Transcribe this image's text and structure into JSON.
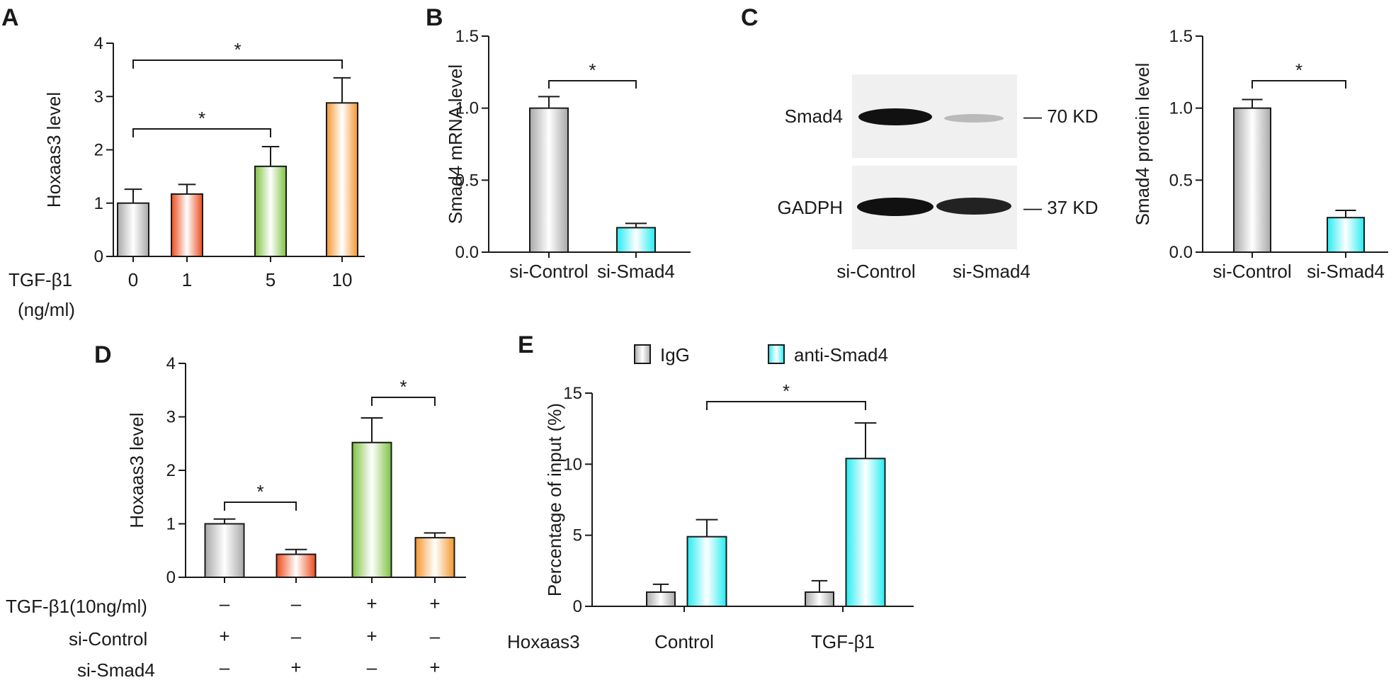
{
  "panel_labels": {
    "a": "A",
    "b": "B",
    "c": "C",
    "d": "D",
    "e": "E"
  },
  "significance_marker": "*",
  "colors": {
    "gray": "#a8a8a8",
    "red": "#ec4a1c",
    "green": "#7fc241",
    "orange": "#f4962e",
    "cyan": "#26ecf2"
  },
  "panel_a": {
    "row_label_1": "TGF-β1",
    "row_label_2": "(ng/ml)",
    "comparisons": [
      {
        "from": 0,
        "to": 3,
        "label": "*"
      },
      {
        "from": 0,
        "to": 2,
        "label": "*"
      }
    ]
  },
  "panel_b": {
    "comparisons": [
      {
        "from": 0,
        "to": 1,
        "label": "*"
      }
    ]
  },
  "panel_c_blot": {
    "bands": [
      {
        "protein": "Smad4",
        "size": "— 70 KD"
      },
      {
        "protein": "GADPH",
        "size": "— 37 KD"
      }
    ],
    "lanes": [
      "si-Control",
      "si-Smad4"
    ],
    "band_intensities": {
      "Smad4": [
        1.0,
        0.25
      ],
      "GADPH": [
        1.0,
        0.95
      ]
    }
  },
  "panel_c": {
    "comparisons": [
      {
        "from": 0,
        "to": 1,
        "label": "*"
      }
    ]
  },
  "panel_d": {
    "conditions": [
      {
        "label": "TGF-β1(10ng/ml)",
        "signs": [
          "–",
          "–",
          "+",
          "+"
        ]
      },
      {
        "label": "si-Control",
        "signs": [
          "+",
          "–",
          "+",
          "–"
        ]
      },
      {
        "label": "si-Smad4",
        "signs": [
          "–",
          "+",
          "–",
          "+"
        ]
      }
    ],
    "comparisons": [
      {
        "from": 0,
        "to": 1,
        "label": "*"
      },
      {
        "from": 2,
        "to": 3,
        "label": "*"
      }
    ]
  },
  "panel_e": {
    "group_row_label": "Hoxaas3",
    "comparisons": [
      {
        "fromGroup": 0,
        "toGroup": 1,
        "series": 1,
        "label": "*"
      }
    ]
  },
  "chart_data": [
    {
      "panel": "A",
      "type": "bar",
      "xlabel": "TGF-β1 (ng/ml)",
      "ylabel": "Hoxaas3 level",
      "ylim": [
        0,
        4
      ],
      "yticks": [
        "0",
        "1",
        "2",
        "3",
        "4"
      ],
      "categories": [
        "0",
        "1",
        "5",
        "10"
      ],
      "values": [
        1.0,
        1.17,
        1.69,
        2.88
      ],
      "errors": [
        0.26,
        0.18,
        0.37,
        0.47
      ],
      "colors": [
        "gray",
        "red",
        "green",
        "orange"
      ]
    },
    {
      "panel": "B",
      "type": "bar",
      "xlabel": "",
      "ylabel": "Smad4 mRNA level",
      "ylim": [
        0,
        1.5
      ],
      "yticks": [
        "0.0",
        "0.5",
        "1.0",
        "1.5"
      ],
      "categories": [
        "si-Control",
        "si-Smad4"
      ],
      "values": [
        1.0,
        0.17
      ],
      "errors": [
        0.08,
        0.03
      ],
      "colors": [
        "gray",
        "cyan"
      ]
    },
    {
      "panel": "C",
      "type": "bar",
      "xlabel": "",
      "ylabel": "Smad4  protein level",
      "ylim": [
        0,
        1.5
      ],
      "yticks": [
        "0.0",
        "0.5",
        "1.0",
        "1.5"
      ],
      "categories": [
        "si-Control",
        "si-Smad4"
      ],
      "values": [
        1.0,
        0.24
      ],
      "errors": [
        0.06,
        0.05
      ],
      "colors": [
        "gray",
        "cyan"
      ]
    },
    {
      "panel": "D",
      "type": "bar",
      "xlabel": "",
      "ylabel": "Hoxaas3 level",
      "ylim": [
        0,
        4
      ],
      "yticks": [
        "0",
        "1",
        "2",
        "3",
        "4"
      ],
      "categories": [
        "",
        "",
        "",
        ""
      ],
      "values": [
        1.0,
        0.43,
        2.52,
        0.74
      ],
      "errors": [
        0.09,
        0.09,
        0.46,
        0.09
      ],
      "colors": [
        "gray",
        "red",
        "green",
        "orange"
      ]
    },
    {
      "panel": "E",
      "type": "bar",
      "xlabel": "",
      "ylabel": "Percentage of input (%)",
      "ylim": [
        0,
        15
      ],
      "yticks": [
        "0",
        "5",
        "10",
        "15"
      ],
      "categories": [
        "Control",
        "TGF-β1"
      ],
      "series": [
        {
          "name": "IgG",
          "values": [
            1.0,
            1.0
          ],
          "errors": [
            0.55,
            0.8
          ],
          "color": "gray"
        },
        {
          "name": "anti-Smad4",
          "values": [
            4.9,
            10.4
          ],
          "errors": [
            1.2,
            2.5
          ],
          "color": "cyan"
        }
      ],
      "legend": "top"
    }
  ]
}
